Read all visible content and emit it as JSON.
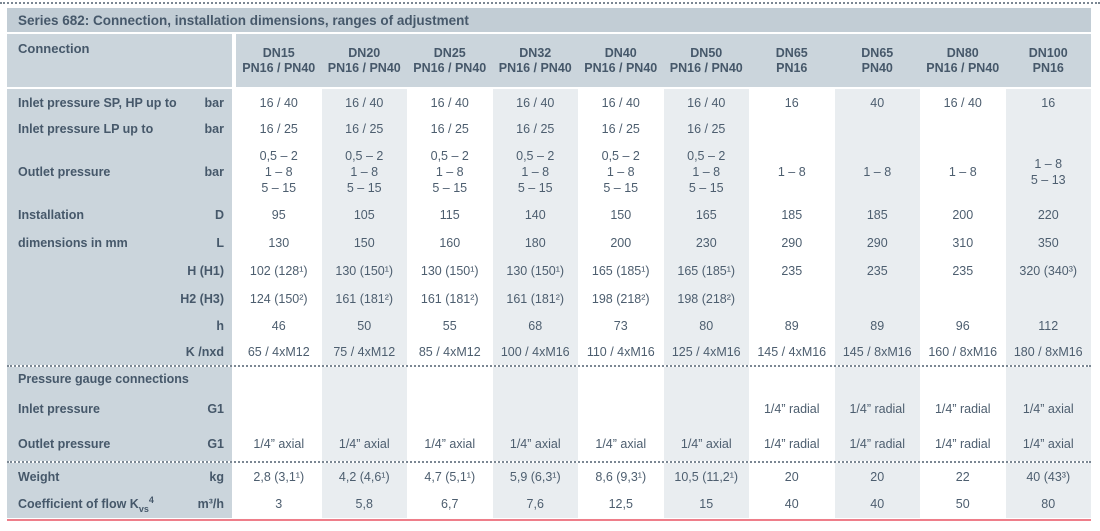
{
  "page": {
    "title": "Series 682: Connection, installation dimensions, ranges of adjustment",
    "accent_color": "#ee7e8a",
    "colors": {
      "title_bar": "#c2cdd5",
      "header_and_label_column": "#cbd5dc",
      "stripe": "#e9edf0",
      "text": "#46586a"
    }
  },
  "table": {
    "corner_label": "Connection",
    "columns": [
      {
        "dn": "DN15",
        "pn": "PN16 / PN40"
      },
      {
        "dn": "DN20",
        "pn": "PN16 / PN40"
      },
      {
        "dn": "DN25",
        "pn": "PN16 / PN40"
      },
      {
        "dn": "DN32",
        "pn": "PN16 / PN40"
      },
      {
        "dn": "DN40",
        "pn": "PN16 / PN40"
      },
      {
        "dn": "DN50",
        "pn": "PN16 / PN40"
      },
      {
        "dn": "DN65",
        "pn": "PN16"
      },
      {
        "dn": "DN65",
        "pn": "PN40"
      },
      {
        "dn": "DN80",
        "pn": "PN16 / PN40"
      },
      {
        "dn": "DN100",
        "pn": "PN16"
      }
    ],
    "rows": [
      {
        "label": "Inlet pressure SP, HP up to",
        "unit": "bar",
        "values": [
          "16 / 40",
          "16 / 40",
          "16 / 40",
          "16 / 40",
          "16 / 40",
          "16 / 40",
          "16",
          "40",
          "16 / 40",
          "16"
        ]
      },
      {
        "label": "Inlet pressure LP up to",
        "unit": "bar",
        "values": [
          "16 / 25",
          "16 / 25",
          "16 / 25",
          "16 / 25",
          "16 / 25",
          "16 / 25",
          "",
          "",
          "",
          ""
        ]
      },
      {
        "label": "Outlet pressure",
        "unit": "bar",
        "values": [
          "0,5 – 2\n1 – 8\n5 – 15",
          "0,5 – 2\n1 – 8\n5 – 15",
          "0,5 – 2\n1 – 8\n5 – 15",
          "0,5 – 2\n1 – 8\n5 – 15",
          "0,5 – 2\n1 – 8\n5 – 15",
          "0,5 – 2\n1 – 8\n5 – 15",
          "1 – 8",
          "1 – 8",
          "1 – 8",
          "1 – 8\n5 – 13"
        ]
      },
      {
        "label": "Installation",
        "unit": "D",
        "values": [
          "95",
          "105",
          "115",
          "140",
          "150",
          "165",
          "185",
          "185",
          "200",
          "220"
        ]
      },
      {
        "label": "dimensions in mm",
        "unit": "L",
        "values": [
          "130",
          "150",
          "160",
          "180",
          "200",
          "230",
          "290",
          "290",
          "310",
          "350"
        ]
      },
      {
        "label": "",
        "unit": "H (H1)",
        "values": [
          "102 (128¹)",
          "130 (150¹)",
          "130 (150¹)",
          "130 (150¹)",
          "165 (185¹)",
          "165 (185¹)",
          "235",
          "235",
          "235",
          "320 (340³)"
        ]
      },
      {
        "label": "",
        "unit": "H2 (H3)",
        "values": [
          "124 (150²)",
          "161 (181²)",
          "161 (181²)",
          "161 (181²)",
          "198 (218²)",
          "198 (218²)",
          "",
          "",
          "",
          ""
        ]
      },
      {
        "label": "",
        "unit": "h",
        "values": [
          "46",
          "50",
          "55",
          "68",
          "73",
          "80",
          "89",
          "89",
          "96",
          "112"
        ]
      },
      {
        "label": "",
        "unit": "K /nxd",
        "values": [
          "65 / 4xM12",
          "75 / 4xM12",
          "85 / 4xM12",
          "100 / 4xM16",
          "110 / 4xM16",
          "125 / 4xM16",
          "145 / 4xM16",
          "145 / 8xM16",
          "160 / 8xM16",
          "180 / 8xM16"
        ]
      },
      {
        "section": true,
        "dotted_above": true,
        "label": "Pressure gauge connections",
        "unit": "",
        "values": [
          "",
          "",
          "",
          "",
          "",
          "",
          "",
          "",
          "",
          ""
        ]
      },
      {
        "label": "Inlet pressure",
        "unit": "G1",
        "values": [
          "",
          "",
          "",
          "",
          "",
          "",
          "1/4” radial",
          "1/4” radial",
          "1/4” radial",
          "1/4” axial"
        ]
      },
      {
        "label": "Outlet pressure",
        "unit": "G1",
        "values": [
          "1/4” axial",
          "1/4” axial",
          "1/4” axial",
          "1/4” axial",
          "1/4” axial",
          "1/4” axial",
          "1/4” radial",
          "1/4” radial",
          "1/4” radial",
          "1/4” axial"
        ]
      },
      {
        "dotted_above": true,
        "label": "Weight",
        "unit": "kg",
        "values": [
          "2,8 (3,1¹)",
          "4,2 (4,6¹)",
          "4,7 (5,1¹)",
          "5,9 (6,3¹)",
          "8,6 (9,3¹)",
          "10,5 (11,2¹)",
          "20",
          "20",
          "22",
          "40 (43³)"
        ]
      },
      {
        "label_parts": {
          "pre": "Coefficient of flow K",
          "sub": "vs",
          "sup": "4"
        },
        "unit": "m³/h",
        "values": [
          "3",
          "5,8",
          "6,7",
          "7,6",
          "12,5",
          "15",
          "40",
          "40",
          "50",
          "80"
        ]
      }
    ]
  }
}
